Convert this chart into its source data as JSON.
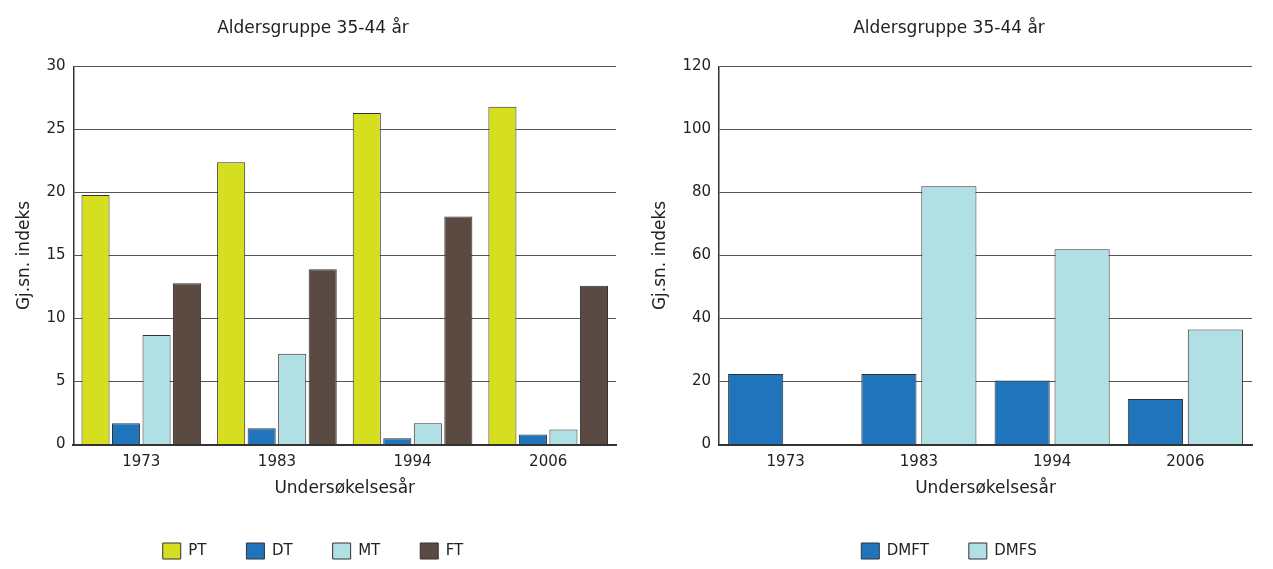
{
  "chart_data": [
    {
      "type": "bar",
      "title": "Aldersgruppe 35-44 år",
      "xlabel": "Undersøkelsesår",
      "ylabel": "Gj.sn. indeks",
      "categories": [
        "1973",
        "1983",
        "1994",
        "2006"
      ],
      "series": [
        {
          "name": "PT",
          "color": "#d6df1f",
          "values": [
            19.8,
            22.4,
            26.3,
            26.8
          ]
        },
        {
          "name": "DT",
          "color": "#1f74bb",
          "values": [
            1.7,
            1.3,
            0.5,
            0.8
          ]
        },
        {
          "name": "MT",
          "color": "#b0dfe4",
          "values": [
            8.7,
            7.2,
            1.7,
            1.2
          ]
        },
        {
          "name": "FT",
          "color": "#5a4a41",
          "values": [
            12.8,
            13.9,
            18.1,
            12.6
          ]
        }
      ],
      "ylim": [
        0,
        30
      ],
      "yticks": [
        0,
        5,
        10,
        15,
        20,
        25,
        30
      ],
      "grid": "y",
      "legend": "bottom"
    },
    {
      "type": "bar",
      "title": "Aldersgruppe 35-44 år",
      "xlabel": "Undersøkelsesår",
      "ylabel": "Gj.sn. indeks",
      "categories": [
        "1973",
        "1983",
        "1994",
        "2006"
      ],
      "series": [
        {
          "name": "DMFT",
          "color": "#1f74bb",
          "values": [
            22.4,
            22.4,
            20.3,
            14.5
          ]
        },
        {
          "name": "DMFS",
          "color": "#b0dfe4",
          "values": [
            null,
            82,
            62,
            36.5
          ]
        }
      ],
      "ylim": [
        0,
        120
      ],
      "yticks": [
        0,
        20,
        40,
        60,
        80,
        100,
        120
      ],
      "grid": "y",
      "legend": "bottom"
    }
  ]
}
